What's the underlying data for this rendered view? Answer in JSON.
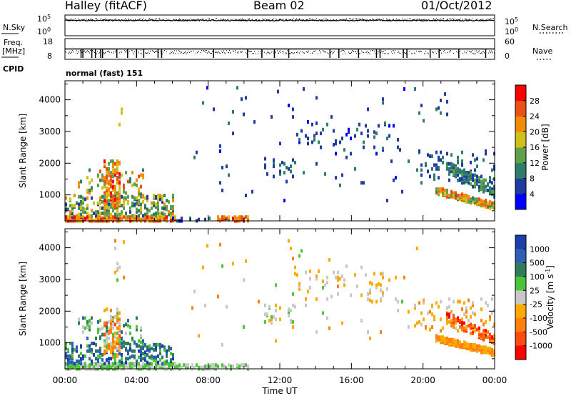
{
  "header": {
    "station": "Halley (fitACF)",
    "beam": "Beam 02",
    "date": "01/Oct/2012"
  },
  "side_labels": {
    "nsky": "N.Sky",
    "nsearch": "N.Search",
    "freq_line1": "Freq.",
    "freq_line2": "[MHz]",
    "nave": "Nave",
    "cpid": "CPID"
  },
  "cpid_value": "normal (fast) 151",
  "chart_data": [
    {
      "type": "line",
      "panel": "noise",
      "y_left_label": "N.Sky",
      "y_right_label": "N.Search",
      "y_left_ticks": [
        "10^5",
        "10^0"
      ],
      "y_right_ticks": [
        "10^5",
        "10^0"
      ],
      "x_range": [
        0,
        24
      ],
      "series": [
        {
          "name": "N.Sky",
          "style": "solid",
          "value": "approximately constant near top of scale"
        },
        {
          "name": "N.Search",
          "style": "dotted",
          "value": "approximately constant near top of scale"
        }
      ]
    },
    {
      "type": "line",
      "panel": "frequency",
      "y_left_label": "Freq. [MHz]",
      "y_left_ticks": [
        "18",
        "8"
      ],
      "y_right_label": "Nave",
      "y_right_ticks": [
        "60",
        "0"
      ],
      "x_range": [
        0,
        24
      ],
      "series": [
        {
          "name": "Freq.",
          "style": "solid",
          "value": "approximately constant"
        },
        {
          "name": "Nave",
          "style": "dotted",
          "value": "scattered with dropouts"
        }
      ],
      "dropouts_hours": [
        0.9,
        1.0,
        1.5,
        1.7,
        2.0,
        2.1,
        2.9,
        3.5,
        4.0,
        4.4,
        5.2,
        5.4,
        8.3,
        10.2,
        11.0,
        11.7,
        12.5,
        14.8,
        15.3,
        16.4,
        17.4,
        17.6,
        18.9,
        19.1,
        20.4,
        20.9,
        22.0,
        23.5
      ]
    },
    {
      "type": "heatmap",
      "panel": "power",
      "ylabel": "Slant Range [km]",
      "x_range": [
        0,
        24
      ],
      "ylim": [
        180,
        4600
      ],
      "yticks": [
        1000,
        2000,
        3000,
        4000
      ],
      "colorbar": {
        "label": "Power [dB]",
        "range": [
          0,
          32
        ],
        "ticks": [
          "4",
          "8",
          "12",
          "16",
          "20",
          "24",
          "28"
        ],
        "colors": [
          "#0000ff",
          "#1f3da0",
          "#2e7d6a",
          "#5fa04a",
          "#d2c01a",
          "#f08c0a",
          "#e85016",
          "#ff0000"
        ]
      },
      "regions": [
        {
          "t": [
            0.0,
            6.1
          ],
          "r": [
            200,
            330
          ],
          "v": [
            18,
            31
          ],
          "d": 0.7
        },
        {
          "t": [
            0.0,
            6.0
          ],
          "r": [
            330,
            1000
          ],
          "v": [
            6,
            22
          ],
          "d": 0.22
        },
        {
          "t": [
            0.8,
            4.4
          ],
          "r": [
            1000,
            1800
          ],
          "v": [
            8,
            26
          ],
          "d": 0.1
        },
        {
          "t": [
            2.2,
            3.0
          ],
          "r": [
            600,
            2100
          ],
          "v": [
            14,
            30
          ],
          "d": 0.32
        },
        {
          "t": [
            2.8,
            3.3
          ],
          "r": [
            3000,
            4300
          ],
          "v": [
            8,
            22
          ],
          "d": 0.03
        },
        {
          "t": [
            6.0,
            8.5
          ],
          "r": [
            200,
            300
          ],
          "v": [
            3,
            12
          ],
          "d": 0.18
        },
        {
          "t": [
            8.5,
            10.2
          ],
          "r": [
            200,
            330
          ],
          "v": [
            18,
            30
          ],
          "d": 0.55
        },
        {
          "t": [
            11.2,
            12.8
          ],
          "r": [
            1600,
            2300
          ],
          "v": [
            4,
            10
          ],
          "d": 0.07
        },
        {
          "t": [
            12.8,
            18.6
          ],
          "r": [
            2300,
            3300
          ],
          "v": [
            3,
            9
          ],
          "d": 0.05
        },
        {
          "t": [
            7.0,
            20.0
          ],
          "r": [
            800,
            4400
          ],
          "v": [
            3,
            10
          ],
          "d": 0.006
        },
        {
          "t": [
            19.5,
            24.0
          ],
          "r": [
            1400,
            2400
          ],
          "v": [
            4,
            10
          ],
          "d": 0.08
        },
        {
          "t": [
            20.0,
            21.5
          ],
          "r": [
            3000,
            4200
          ],
          "v": [
            4,
            10
          ],
          "d": 0.02
        }
      ],
      "bands": [
        {
          "t": [
            20.8,
            24.0
          ],
          "r0": 1150,
          "r1": 650,
          "w": 170,
          "v": [
            10,
            27
          ],
          "d": 0.75
        },
        {
          "t": [
            21.3,
            24.0
          ],
          "r0": 1900,
          "r1": 1150,
          "w": 320,
          "v": [
            5,
            16
          ],
          "d": 0.45
        },
        {
          "t": [
            21.8,
            24.0
          ],
          "r0": 1600,
          "r1": 1000,
          "w": 150,
          "v": [
            6,
            14
          ],
          "d": 0.3
        }
      ]
    },
    {
      "type": "heatmap",
      "panel": "velocity",
      "ylabel": "Slant Range [km]",
      "x_range": [
        0,
        24
      ],
      "ylim": [
        180,
        4600
      ],
      "yticks": [
        1000,
        2000,
        3000,
        4000
      ],
      "colorbar": {
        "label": "Velocity [m s^-1]",
        "ticks": [
          "1000",
          "500",
          "100",
          "25",
          "-25",
          "-100",
          "-500",
          "-1000"
        ],
        "colors": [
          "#1c3ea8",
          "#2c5fb5",
          "#2e7d57",
          "#4cc43a",
          "#c8c8c8",
          "#ffaa00",
          "#ff7f0f",
          "#ff4a12",
          "#ff0000"
        ]
      },
      "regions": [
        {
          "t": [
            0.0,
            6.1
          ],
          "r": [
            200,
            350
          ],
          "v": [
            3,
            4
          ],
          "d": 0.6
        },
        {
          "t": [
            0.0,
            6.0
          ],
          "r": [
            350,
            1000
          ],
          "v": [
            0,
            3
          ],
          "d": 0.25
        },
        {
          "t": [
            0.8,
            4.4
          ],
          "r": [
            1000,
            1800
          ],
          "v": [
            1,
            4
          ],
          "d": 0.1
        },
        {
          "t": [
            2.2,
            3.0
          ],
          "r": [
            600,
            2100
          ],
          "v": [
            3,
            7
          ],
          "d": 0.28
        },
        {
          "t": [
            2.8,
            3.3
          ],
          "r": [
            3000,
            4300
          ],
          "v": [
            3,
            6
          ],
          "d": 0.03
        },
        {
          "t": [
            6.0,
            10.2
          ],
          "r": [
            200,
            320
          ],
          "v": [
            3,
            4
          ],
          "d": 0.35
        },
        {
          "t": [
            11.2,
            12.8
          ],
          "r": [
            1600,
            2300
          ],
          "v": [
            3,
            5
          ],
          "d": 0.07
        },
        {
          "t": [
            12.8,
            18.6
          ],
          "r": [
            2300,
            3300
          ],
          "v": [
            4,
            5
          ],
          "d": 0.05
        },
        {
          "t": [
            7.0,
            20.0
          ],
          "r": [
            800,
            4400
          ],
          "v": [
            3,
            6
          ],
          "d": 0.006
        },
        {
          "t": [
            19.5,
            24.0
          ],
          "r": [
            1400,
            2400
          ],
          "v": [
            4,
            6
          ],
          "d": 0.08
        }
      ],
      "bands": [
        {
          "t": [
            20.8,
            24.0
          ],
          "r0": 1150,
          "r1": 700,
          "w": 160,
          "v": [
            5,
            6
          ],
          "d": 0.75
        },
        {
          "t": [
            21.3,
            24.0
          ],
          "r0": 1800,
          "r1": 1100,
          "w": 320,
          "v": [
            5,
            8
          ],
          "d": 0.45
        }
      ]
    }
  ],
  "x_axis": {
    "label": "Time UT",
    "ticks": [
      "00:00",
      "04:00",
      "08:00",
      "12:00",
      "16:00",
      "20:00",
      "00:00"
    ]
  }
}
